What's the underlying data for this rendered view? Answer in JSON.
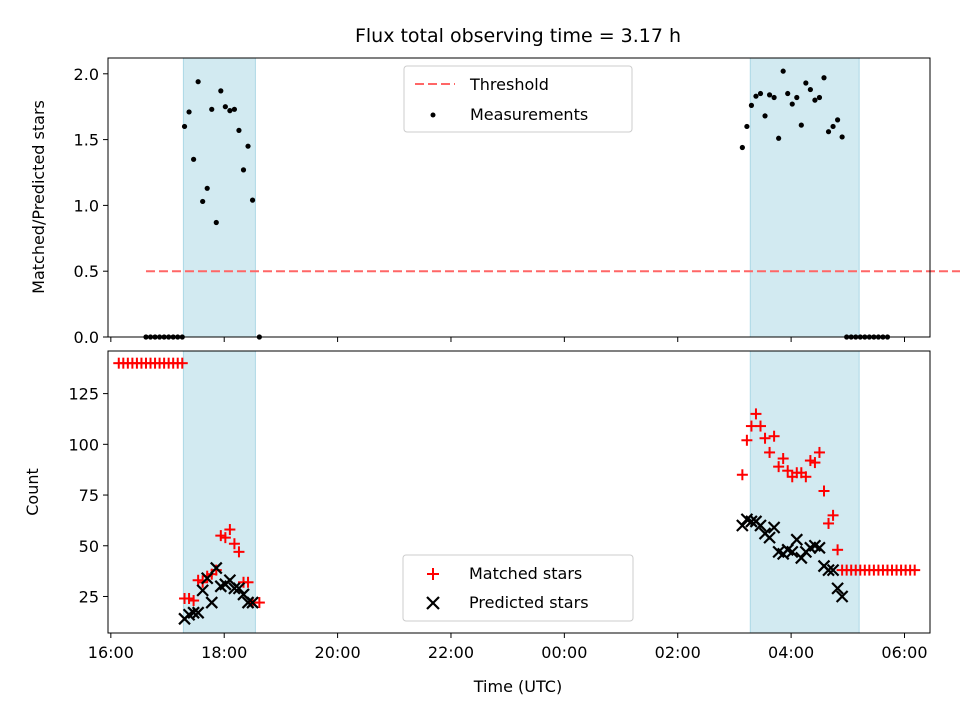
{
  "figure": {
    "title": "Flux total observing time = 3.17 h"
  },
  "chart_data": [
    {
      "type": "scatter",
      "panel": "top",
      "title": "Flux total observing time = 3.17 h",
      "ylabel": "Matched/Predicted stars",
      "xlabel": "",
      "x_units": "hours since 16:00 UTC",
      "xlim": [
        -0.05,
        14.45
      ],
      "ylim": [
        0,
        2.12
      ],
      "yticks": [
        0.0,
        0.5,
        1.0,
        1.5,
        2.0
      ],
      "ytick_labels": [
        "0.0",
        "0.5",
        "1.0",
        "1.5",
        "2.0"
      ],
      "shaded_intervals": [
        [
          1.28,
          2.55
        ],
        [
          11.28,
          13.2
        ]
      ],
      "shade_color": "#add8e6",
      "threshold": {
        "name": "Threshold",
        "y": 0.5,
        "x_range": [
          0.62,
          14.98
        ],
        "color": "#ff6666"
      },
      "legend": {
        "placement": "upper center",
        "entries": [
          "Threshold",
          "Measurements"
        ]
      },
      "series": [
        {
          "name": "Measurements",
          "color": "#000000",
          "x": [
            0.62,
            0.7,
            0.78,
            0.86,
            0.94,
            1.02,
            1.1,
            1.18,
            1.26,
            1.3,
            1.38,
            1.46,
            1.54,
            1.62,
            1.7,
            1.78,
            1.86,
            1.94,
            2.02,
            2.1,
            2.18,
            2.26,
            2.34,
            2.42,
            2.5,
            2.62,
            11.14,
            11.22,
            11.3,
            11.38,
            11.46,
            11.54,
            11.62,
            11.7,
            11.78,
            11.86,
            11.94,
            12.02,
            12.1,
            12.18,
            12.26,
            12.34,
            12.42,
            12.5,
            12.58,
            12.66,
            12.74,
            12.82,
            12.9,
            12.98,
            13.06,
            13.14,
            13.22,
            13.3,
            13.38,
            13.46,
            13.54,
            13.62,
            13.7
          ],
          "y": [
            0,
            0,
            0,
            0,
            0,
            0,
            0,
            0,
            0,
            1.6,
            1.71,
            1.35,
            1.94,
            1.03,
            1.13,
            1.73,
            0.87,
            1.87,
            1.75,
            1.72,
            1.73,
            1.57,
            1.27,
            1.45,
            1.04,
            0,
            1.44,
            1.6,
            1.76,
            1.83,
            1.85,
            1.68,
            1.84,
            1.82,
            1.51,
            2.02,
            1.85,
            1.77,
            1.82,
            1.61,
            1.93,
            1.88,
            1.8,
            1.82,
            1.97,
            1.56,
            1.6,
            1.65,
            1.52,
            0,
            0,
            0,
            0,
            0,
            0,
            0,
            0,
            0,
            0
          ]
        }
      ]
    },
    {
      "type": "scatter",
      "panel": "bottom",
      "ylabel": "Count",
      "xlabel": "Time (UTC)",
      "x_units": "hours since 16:00 UTC",
      "xlim": [
        -0.05,
        14.45
      ],
      "ylim": [
        7,
        146
      ],
      "yticks": [
        25,
        50,
        75,
        100,
        125
      ],
      "ytick_labels": [
        "25",
        "50",
        "75",
        "100",
        "125"
      ],
      "xticks": [
        0,
        2,
        4,
        6,
        8,
        10,
        12,
        14
      ],
      "xtick_labels": [
        "16:00",
        "18:00",
        "20:00",
        "22:00",
        "00:00",
        "02:00",
        "04:00",
        "06:00"
      ],
      "shaded_intervals": [
        [
          1.28,
          2.55
        ],
        [
          11.28,
          13.2
        ]
      ],
      "shade_color": "#add8e6",
      "legend": {
        "placement": "lower center",
        "entries": [
          "Matched stars",
          "Predicted stars"
        ]
      },
      "series": [
        {
          "name": "Matched stars",
          "marker": "plus",
          "color": "#ff0000",
          "x": [
            0.14,
            0.22,
            0.3,
            0.38,
            0.46,
            0.54,
            0.62,
            0.7,
            0.78,
            0.86,
            0.94,
            1.02,
            1.1,
            1.18,
            1.26,
            1.3,
            1.38,
            1.46,
            1.54,
            1.62,
            1.7,
            1.78,
            1.86,
            1.94,
            2.02,
            2.1,
            2.18,
            2.26,
            2.34,
            2.42,
            2.5,
            2.62,
            11.14,
            11.22,
            11.3,
            11.38,
            11.46,
            11.54,
            11.62,
            11.7,
            11.78,
            11.86,
            11.94,
            12.02,
            12.1,
            12.18,
            12.26,
            12.34,
            12.42,
            12.5,
            12.58,
            12.66,
            12.74,
            12.82,
            12.9,
            12.98,
            13.06,
            13.14,
            13.22,
            13.3,
            13.38,
            13.46,
            13.54,
            13.62,
            13.7,
            13.78,
            13.86,
            13.94,
            14.02,
            14.1,
            14.18
          ],
          "y": [
            140,
            140,
            140,
            140,
            140,
            140,
            140,
            140,
            140,
            140,
            140,
            140,
            140,
            140,
            140,
            24,
            24,
            23,
            33,
            32,
            35,
            36,
            38,
            55,
            54,
            58,
            51,
            47,
            32,
            32,
            22,
            22,
            85,
            102,
            109,
            115,
            109,
            103,
            96,
            104,
            89,
            93,
            87,
            84,
            86,
            86,
            84,
            92,
            91,
            96,
            77,
            61,
            65,
            48,
            38,
            38,
            38,
            38,
            38,
            38,
            38,
            38,
            38,
            38,
            38,
            38,
            38,
            38,
            38,
            38,
            38
          ]
        },
        {
          "name": "Predicted stars",
          "marker": "x",
          "color": "#000000",
          "x": [
            1.3,
            1.38,
            1.46,
            1.54,
            1.62,
            1.7,
            1.78,
            1.86,
            1.94,
            2.02,
            2.1,
            2.18,
            2.26,
            2.34,
            2.42,
            2.5,
            11.14,
            11.22,
            11.3,
            11.38,
            11.46,
            11.54,
            11.62,
            11.7,
            11.78,
            11.86,
            11.94,
            12.02,
            12.1,
            12.18,
            12.26,
            12.34,
            12.42,
            12.5,
            12.58,
            12.66,
            12.74,
            12.82,
            12.9
          ],
          "y": [
            14,
            16,
            17,
            17,
            28,
            34,
            22,
            39,
            30,
            31,
            33,
            29,
            29,
            26,
            22,
            22,
            60,
            63,
            62,
            62,
            60,
            56,
            54,
            59,
            47,
            46,
            48,
            47,
            53,
            44,
            47,
            49,
            50,
            49,
            40,
            38,
            38,
            29,
            25
          ]
        }
      ]
    }
  ]
}
